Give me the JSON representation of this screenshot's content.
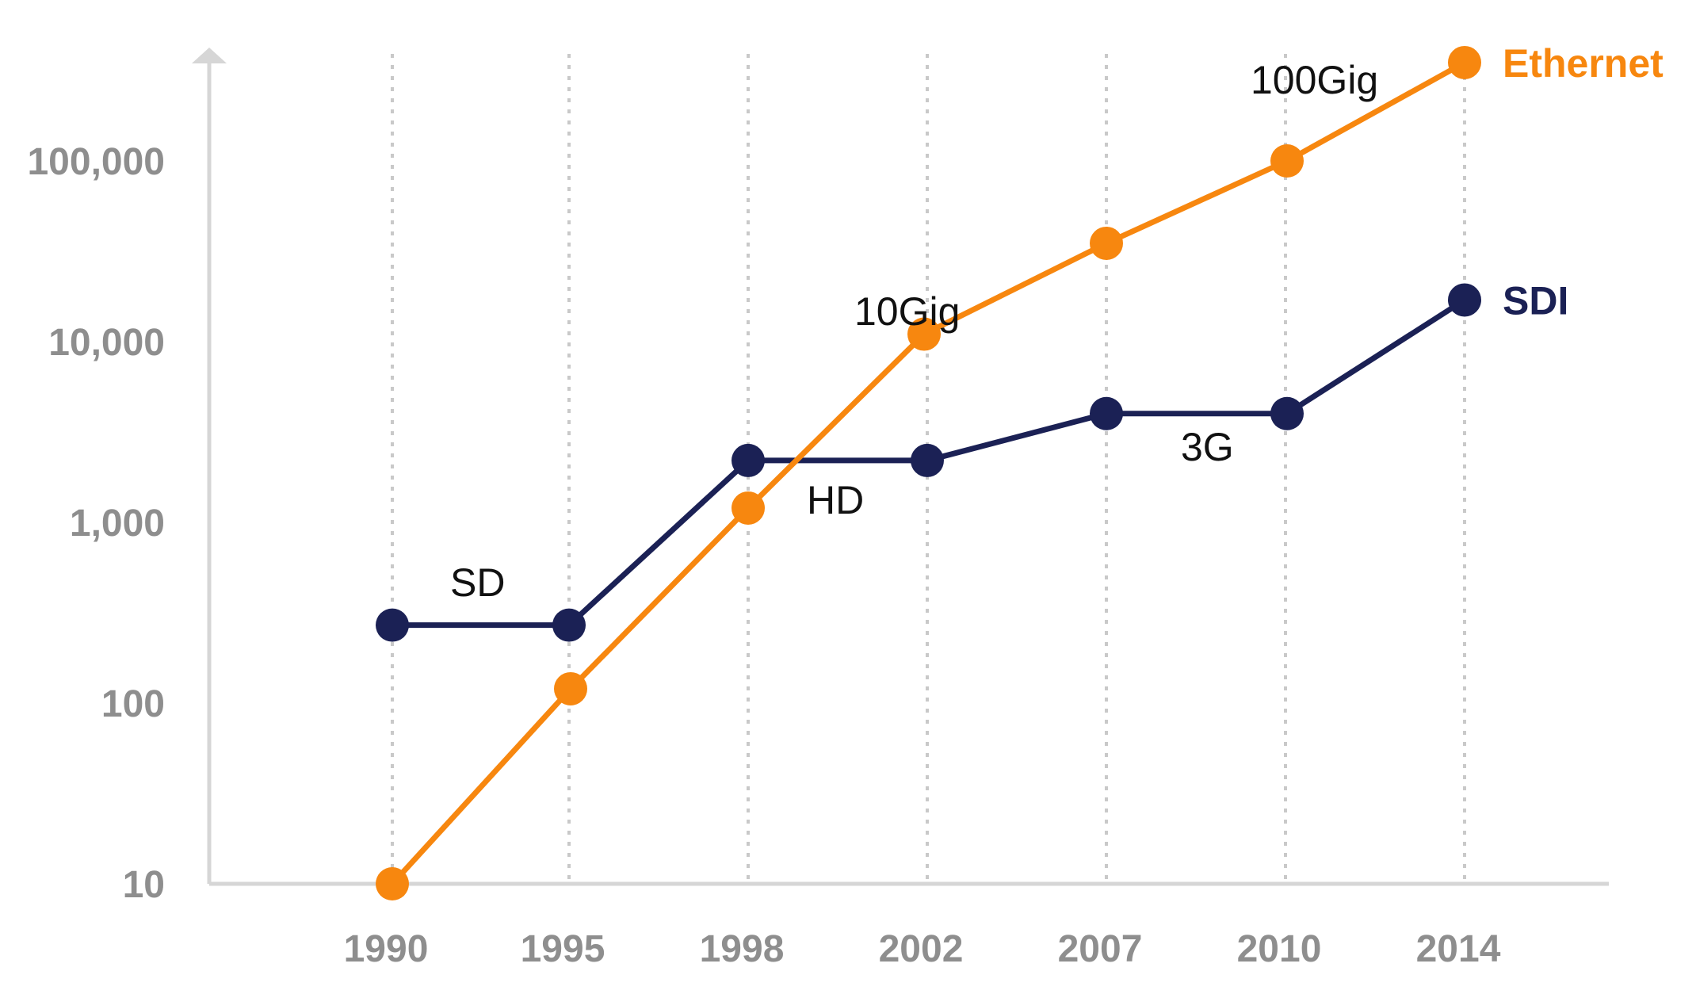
{
  "chart_data": {
    "type": "line",
    "title": "",
    "xlabel": "",
    "ylabel": "",
    "x_scale": "categorical",
    "y_scale": "log",
    "categories": [
      "1990",
      "1995",
      "1998",
      "2002",
      "2007",
      "2010",
      "2014"
    ],
    "ylim": [
      10,
      400000
    ],
    "yticks": [
      10,
      100,
      1000,
      10000,
      100000
    ],
    "ytick_labels": [
      "10",
      "100",
      "1,000",
      "10,000",
      "100,000"
    ],
    "grid": "vertical dotted lines at each category",
    "legend": "series names printed at right end of lines",
    "series": [
      {
        "name": "Ethernet",
        "color": "#f7870f",
        "values": [
          10,
          120,
          1200,
          11000,
          35000,
          100000,
          350000
        ]
      },
      {
        "name": "SDI",
        "color": "#1b2155",
        "values": [
          270,
          270,
          2200,
          2200,
          4000,
          4000,
          17000
        ]
      }
    ],
    "annotations": [
      {
        "text": "SD",
        "x": "1990-1995",
        "series": "SDI"
      },
      {
        "text": "HD",
        "x": "1998-2002",
        "series": "SDI"
      },
      {
        "text": "3G",
        "x": "2007-2010",
        "series": "SDI"
      },
      {
        "text": "10Gig",
        "x": "2002",
        "series": "Ethernet"
      },
      {
        "text": "100Gig",
        "x": "2010-2014",
        "series": "Ethernet"
      }
    ]
  }
}
